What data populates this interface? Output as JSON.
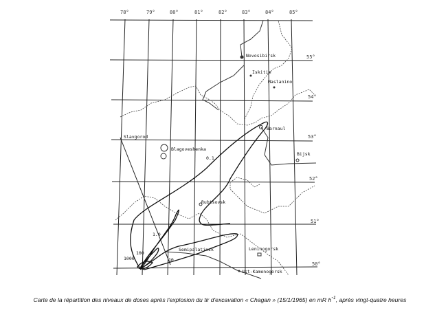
{
  "map": {
    "longitude_labels": [
      "78°",
      "79°",
      "80°",
      "81°",
      "82°",
      "83°",
      "84°",
      "85°"
    ],
    "latitude_labels": [
      "55°",
      "54°",
      "53°",
      "52°",
      "51°",
      "50°"
    ],
    "cities": [
      "Novosibirsk",
      "Iskitim",
      "Maslanino",
      "Barnaul",
      "Slavgorod",
      "Blagoveshenka",
      "Bijsk",
      "Rubtsovsk",
      "Semipalatinsk",
      "Leninogorsk",
      "Ust-Kamenogorsk"
    ],
    "contour_labels": [
      "0.1",
      "1.0",
      "10",
      "100",
      "1000"
    ]
  },
  "caption": {
    "text": "Carte de la répartition des niveaux de doses après l'explosion du tir d'excavation « Chagan » (15/1/1965) en mR h",
    "superscript": "-1",
    "text_end": ", après vingt-quatre heures"
  }
}
